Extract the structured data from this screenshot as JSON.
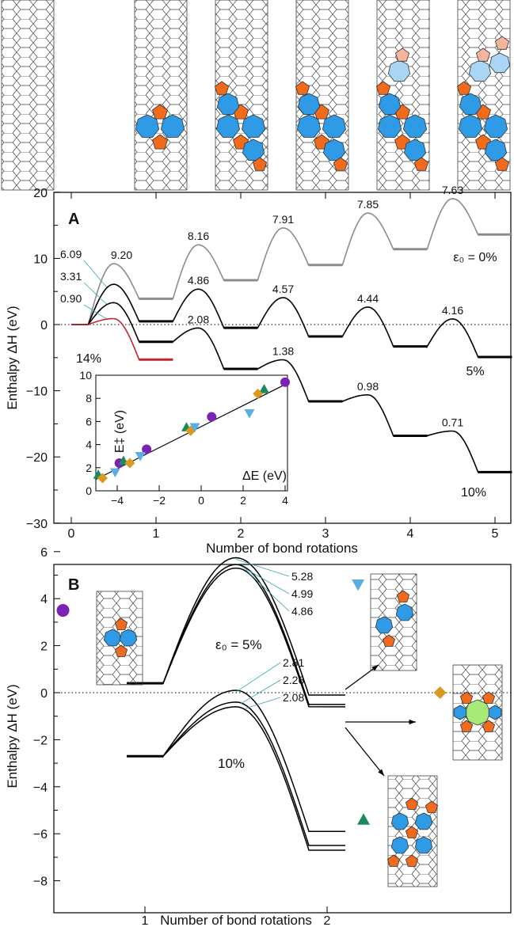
{
  "chart_data": [
    {
      "panel": "A",
      "type": "line",
      "xlabel": "Number of bond rotations",
      "ylabel": "Enthalpy ΔH (eV)",
      "xlim": [
        -0.2,
        5.2
      ],
      "ylim": [
        -30,
        20
      ],
      "xticks": [
        "0",
        "1",
        "2",
        "3",
        "4",
        "5"
      ],
      "yticks": [
        "-30",
        "-20",
        "-10",
        "0",
        "10",
        "20"
      ],
      "reference_line": 0,
      "series": [
        {
          "name": "ε0 = 0%",
          "label": "ε₀ = 0%",
          "color": "#8c8c8c",
          "levels": [
            0,
            3.9,
            6.7,
            9.0,
            11.4,
            13.6
          ],
          "barriers": [
            "9.20",
            "8.16",
            "7.91",
            "7.85",
            "7.63"
          ]
        },
        {
          "name": "5%",
          "label": "5%",
          "color": "#000000",
          "levels": [
            0,
            0.5,
            -0.5,
            -1.8,
            -3.3,
            -4.9
          ],
          "barriers": [
            "6.09",
            "4.86",
            "4.57",
            "4.44",
            "4.16"
          ]
        },
        {
          "name": "10%",
          "label": "10%",
          "color": "#000000",
          "levels": [
            0,
            -2.6,
            -6.7,
            -11.6,
            -16.8,
            -22.3
          ],
          "barriers": [
            "3.31",
            "2.08",
            "1.38",
            "0.98",
            "0.71"
          ]
        },
        {
          "name": "14%",
          "label": "14%",
          "color": "#c0272d",
          "levels": [
            0,
            -5.3
          ],
          "barriers": [
            "0.90"
          ]
        }
      ],
      "inset": {
        "type": "scatter",
        "xlabel": "ΔE (eV)",
        "ylabel": "E‡ (eV)",
        "xlim": [
          -5,
          4
        ],
        "ylim": [
          0,
          10
        ],
        "xticks": [
          "-4",
          "-2",
          "0",
          "2",
          "4"
        ],
        "yticks": [
          "0",
          "2",
          "4",
          "6",
          "8",
          "10"
        ],
        "fit_line": [
          [
            -5,
            1.0
          ],
          [
            4,
            9.2
          ]
        ],
        "series": [
          {
            "name": "circle",
            "marker": "circle",
            "color": "#7b22b4",
            "points": [
              [
                -3.9,
                2.4
              ],
              [
                -2.6,
                3.6
              ],
              [
                0.5,
                6.4
              ],
              [
                4.0,
                9.4
              ]
            ]
          },
          {
            "name": "triangle-up",
            "marker": "triangle-up",
            "color": "#1b8a5e",
            "points": [
              [
                -4.9,
                1.4
              ],
              [
                -3.7,
                2.6
              ],
              [
                -0.7,
                5.5
              ],
              [
                3.0,
                8.8
              ]
            ]
          },
          {
            "name": "diamond",
            "marker": "diamond",
            "color": "#d99a1e",
            "points": [
              [
                -4.7,
                1.1
              ],
              [
                -3.4,
                2.4
              ],
              [
                -0.5,
                5.2
              ],
              [
                2.7,
                8.4
              ]
            ]
          },
          {
            "name": "triangle-down",
            "marker": "triangle-down",
            "color": "#5aaee0",
            "points": [
              [
                -4.1,
                1.6
              ],
              [
                -2.9,
                3.0
              ],
              [
                -0.3,
                5.5
              ],
              [
                2.3,
                6.7
              ]
            ]
          }
        ]
      }
    },
    {
      "panel": "B",
      "type": "line",
      "xlabel": "Number of bond rotations",
      "ylabel": "Enthalpy ΔH (eV)",
      "xlim": [
        0.35,
        2.9
      ],
      "ylim": [
        -8,
        7
      ],
      "xticks": [
        "1",
        "2"
      ],
      "yticks": [
        "-8",
        "-6",
        "-4",
        "-2",
        "0",
        "2",
        "4",
        "6"
      ],
      "groups": [
        {
          "name": "ε0 = 5%",
          "label": "ε₀ = 5%",
          "start": 0.4,
          "peaks": [
            5.74,
            5.45,
            5.3
          ],
          "ends": [
            -0.1,
            -0.5,
            -0.6
          ],
          "barriers": [
            "5.28",
            "4.99",
            "4.86"
          ]
        },
        {
          "name": "10%",
          "label": "10%",
          "start": -2.7,
          "peaks": [
            0.1,
            -0.4,
            -0.6
          ],
          "ends": [
            -5.9,
            -6.5,
            -6.7
          ],
          "barriers": [
            "2.81",
            "2.26",
            "2.08"
          ]
        }
      ],
      "markers": [
        {
          "marker": "circle",
          "color": "#7b22b4",
          "x": 0.55,
          "y": 3.5
        },
        {
          "marker": "triangle-down",
          "color": "#5aaee0",
          "x": 2.17,
          "y": 4.6
        },
        {
          "marker": "diamond",
          "color": "#d99a1e",
          "x": 2.62,
          "y": 0
        },
        {
          "marker": "triangle-up",
          "color": "#1b8a5e",
          "x": 2.2,
          "y": -5.4
        }
      ]
    }
  ],
  "colors": {
    "pentagon": "#f26b1d",
    "heptagon": "#2f9be6",
    "octagon": "#a8ea78",
    "pentagon_faded": "#f5b59a",
    "heptagon_faded": "#a9d6f5"
  }
}
